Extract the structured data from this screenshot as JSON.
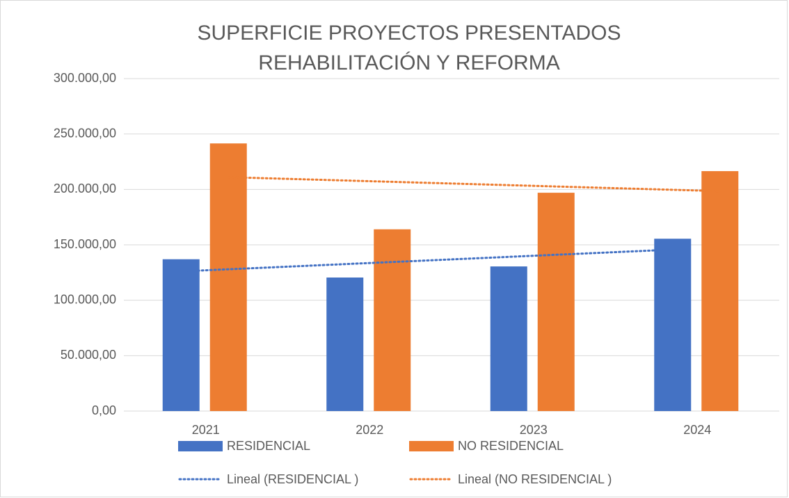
{
  "chart_data": {
    "type": "bar",
    "title": "SUPERFICIE PROYECTOS PRESENTADOS REHABILITACIÓN Y REFORMA",
    "categories": [
      "2021",
      "2022",
      "2023",
      "2024"
    ],
    "series": [
      {
        "name": "RESIDENCIAL",
        "color": "#4472c4",
        "values": [
          137000,
          120500,
          130500,
          155500
        ],
        "trend_name": "Lineal (RESIDENCIAL )"
      },
      {
        "name": "NO RESIDENCIAL",
        "color": "#ed7d31",
        "values": [
          241500,
          164000,
          197000,
          216500
        ],
        "trend_name": "Lineal (NO RESIDENCIAL )"
      }
    ],
    "trendline": "linear",
    "ylim": [
      0,
      300000
    ],
    "yticks": [
      {
        "value": 0,
        "label": "0,00"
      },
      {
        "value": 50000,
        "label": "50.000,00"
      },
      {
        "value": 100000,
        "label": "100.000,00"
      },
      {
        "value": 150000,
        "label": "150.000,00"
      },
      {
        "value": 200000,
        "label": "200.000,00"
      },
      {
        "value": 250000,
        "label": "250.000,00"
      },
      {
        "value": 300000,
        "label": "300.000,00"
      }
    ],
    "grid": true,
    "legend": "bottom"
  }
}
